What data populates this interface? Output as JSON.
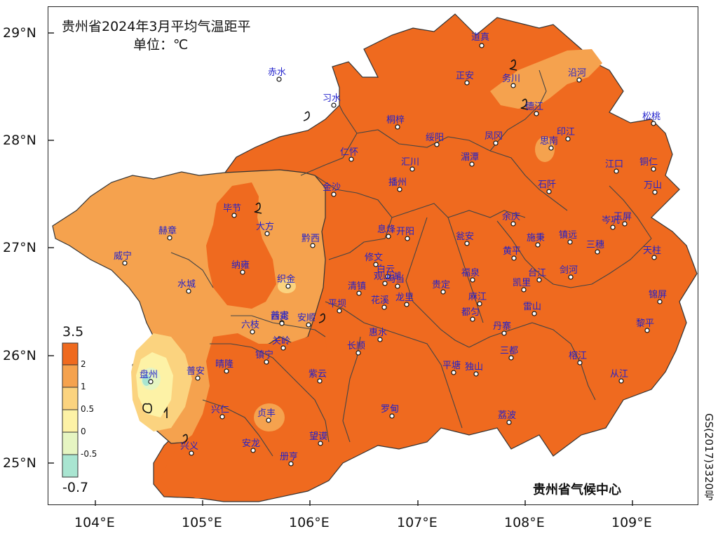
{
  "map": {
    "title": "贵州省2024年3月平均气温距平",
    "unit": "单位：℃",
    "credit": "贵州省气候中心",
    "approval_number": "GS(2017)3320号",
    "latitude_labels": [
      "29°N",
      "28°N",
      "27°N",
      "26°N",
      "25°N"
    ],
    "longitude_labels": [
      "104°E",
      "105°E",
      "106°E",
      "107°E",
      "108°E",
      "109°E"
    ],
    "legend": {
      "max_label": "3.5",
      "min_label": "-0.7",
      "ticks": [
        "2",
        "1",
        "0.5",
        "0",
        "-0.5"
      ],
      "colors": {
        "gt2": "#ef6a1f",
        "1to2": "#f5a24e",
        "05to1": "#fbd37f",
        "0to05": "#fdf2a6",
        "m05to0": "#e6f5c2",
        "lt_m05": "#a9e5d1"
      }
    },
    "stations": [
      "道真",
      "赤水",
      "习水",
      "正安",
      "务川",
      "沿河",
      "德江",
      "桐梓",
      "绥阳",
      "凤冈",
      "松桃",
      "仁怀",
      "汇川",
      "湄潭",
      "思南",
      "印江",
      "金沙",
      "播州",
      "石阡",
      "江口",
      "铜仁",
      "万山",
      "毕节",
      "大方",
      "黔西",
      "息烽",
      "开阳",
      "瓮安",
      "余庆",
      "施秉",
      "镇远",
      "岑巩",
      "玉屏",
      "赫章",
      "威宁",
      "纳雍",
      "织金",
      "修文",
      "白云",
      "乌当",
      "福泉",
      "黄平",
      "三穗",
      "天柱",
      "清镇",
      "观山湖",
      "花溪",
      "贵定",
      "凯里",
      "台江",
      "剑河",
      "锦屏",
      "水城",
      "龙里",
      "麻江",
      "雷山",
      "平坝",
      "都匀",
      "六枝",
      "普定",
      "安顺",
      "西秀",
      "丹寨",
      "黎平",
      "镇宁",
      "关岭",
      "长顺",
      "惠水",
      "三都",
      "榕江",
      "盘州",
      "普安",
      "晴隆",
      "紫云",
      "平塘",
      "独山",
      "从江",
      "兴仁",
      "贞丰",
      "罗甸",
      "荔波",
      "兴义",
      "安龙",
      "望谟",
      "册亨"
    ]
  }
}
